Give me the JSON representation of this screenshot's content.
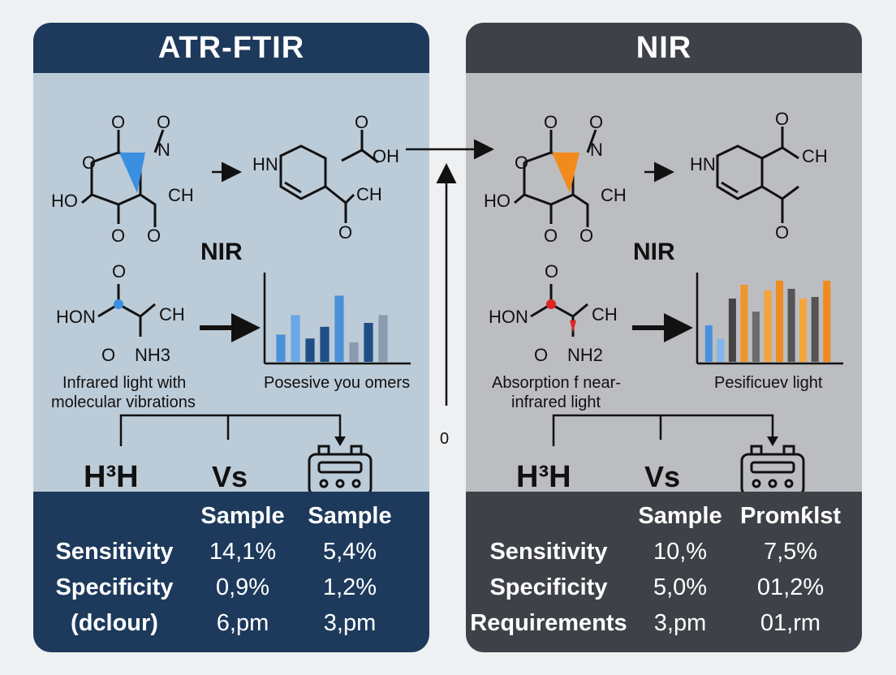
{
  "left": {
    "title": "ATR-FTIR",
    "subheading": "NIR",
    "molecule_top_labels": [
      "O",
      "N",
      "O",
      "O",
      "HO",
      "CH",
      "O",
      "O"
    ],
    "pyridine_labels": [
      "HN",
      "O",
      "OH",
      "CH",
      "O"
    ],
    "amide_labels": [
      "O",
      "HON",
      "CH",
      "O",
      "NH3"
    ],
    "caption_left": [
      "Infrared light with",
      "molecular vibrations"
    ],
    "caption_right": "Posesive you omers",
    "formula": "H³H",
    "vs": "Vs",
    "table": {
      "headers": [
        "Sample",
        "Sample"
      ],
      "rows": [
        {
          "label": "Sensitivity",
          "values": [
            "14,1%",
            "5,4%"
          ]
        },
        {
          "label": "Specificity",
          "values": [
            "0,9%",
            "1,2%"
          ]
        },
        {
          "label": "(dclour)",
          "values": [
            "6,pm",
            "3,pm"
          ]
        }
      ]
    },
    "bars": [
      {
        "value": 0.35,
        "color": "#4a90d9"
      },
      {
        "value": 0.6,
        "color": "#6aa9e6"
      },
      {
        "value": 0.3,
        "color": "#1f4f86"
      },
      {
        "value": 0.45,
        "color": "#1f4f86"
      },
      {
        "value": 0.85,
        "color": "#4a90d9"
      },
      {
        "value": 0.25,
        "color": "#8a9bb0"
      },
      {
        "value": 0.5,
        "color": "#1f4f86"
      },
      {
        "value": 0.6,
        "color": "#8a9bb0"
      }
    ]
  },
  "right": {
    "title": "NIR",
    "subheading": "NIR",
    "molecule_top_labels": [
      "O",
      "N",
      "O",
      "O",
      "HO",
      "CH",
      "O",
      "O"
    ],
    "pyridine_labels": [
      "HN",
      "O",
      "CH",
      "O"
    ],
    "amide_labels": [
      "O",
      "HON",
      "CH",
      "O",
      "NH2"
    ],
    "caption_left": [
      "Absorption f near-",
      "infrared light"
    ],
    "caption_right": "Pesificuev light",
    "formula": "H³H",
    "vs": "Vs",
    "table": {
      "headers": [
        "Sample",
        "Promƙlst"
      ],
      "rows": [
        {
          "label": "Sensitivity",
          "values": [
            "10,%",
            "7,5%"
          ]
        },
        {
          "label": "Specificity",
          "values": [
            "5,0%",
            "01,2%"
          ]
        },
        {
          "label": "Requirements",
          "values": [
            "3,pm",
            "01,rm"
          ]
        }
      ]
    },
    "bars": [
      {
        "value": 0.45,
        "color": "#4a90d9"
      },
      {
        "value": 0.28,
        "color": "#7fb6ea"
      },
      {
        "value": 0.78,
        "color": "#444"
      },
      {
        "value": 0.95,
        "color": "#f0952a"
      },
      {
        "value": 0.62,
        "color": "#6b6b6b"
      },
      {
        "value": 0.88,
        "color": "#f6a43a"
      },
      {
        "value": 1.0,
        "color": "#f08a1c"
      },
      {
        "value": 0.9,
        "color": "#555"
      },
      {
        "value": 0.78,
        "color": "#f6a43a"
      },
      {
        "value": 0.8,
        "color": "#555"
      },
      {
        "value": 1.0,
        "color": "#f08a1c"
      }
    ]
  },
  "connector": {
    "label": "0"
  },
  "colors": {
    "blue_highlight": "#3b8fe0",
    "orange_highlight": "#f28a1e",
    "red_highlight": "#e02424"
  }
}
